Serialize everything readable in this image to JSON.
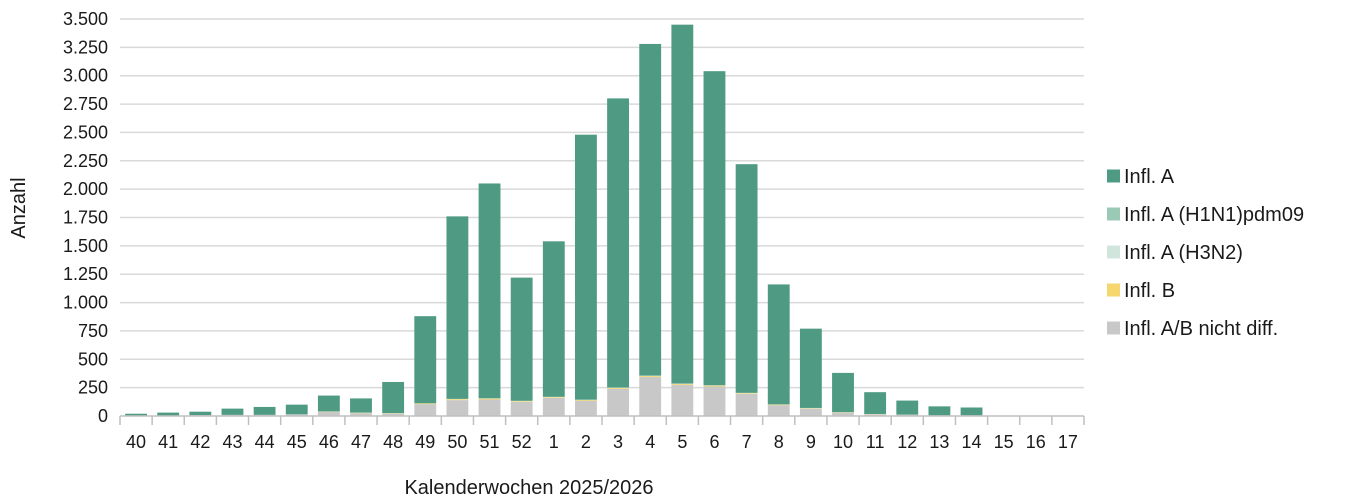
{
  "chart_data": {
    "type": "bar",
    "stacked": true,
    "title": "",
    "xlabel": "Kalenderwochen 2025/2026",
    "ylabel": "Anzahl",
    "ylim": [
      0,
      3500
    ],
    "y_ticks": [
      0,
      250,
      500,
      750,
      1000,
      1250,
      1500,
      1750,
      2000,
      2250,
      2500,
      2750,
      3000,
      3250,
      3500
    ],
    "y_tick_labels": [
      "0",
      "250",
      "500",
      "750",
      "1.000",
      "1.250",
      "1.500",
      "1.750",
      "2.000",
      "2.250",
      "2.500",
      "2.750",
      "3.000",
      "3.250",
      "3.500"
    ],
    "grid": true,
    "legend_position": "right",
    "categories": [
      "40",
      "41",
      "42",
      "43",
      "44",
      "45",
      "46",
      "47",
      "48",
      "49",
      "50",
      "51",
      "52",
      "1",
      "2",
      "3",
      "4",
      "5",
      "6",
      "7",
      "8",
      "9",
      "10",
      "11",
      "12",
      "13",
      "14",
      "15",
      "16",
      "17"
    ],
    "series": [
      {
        "name": "Infl. A/B nicht diff.",
        "color": "#c8c8c8",
        "values": [
          5,
          5,
          8,
          10,
          10,
          15,
          35,
          25,
          20,
          105,
          140,
          145,
          125,
          160,
          135,
          240,
          345,
          275,
          260,
          195,
          95,
          65,
          30,
          15,
          10,
          5,
          5,
          0,
          0,
          0
        ]
      },
      {
        "name": "Infl. B",
        "color": "#f5d76e",
        "values": [
          0,
          0,
          0,
          0,
          0,
          0,
          3,
          3,
          3,
          5,
          8,
          8,
          6,
          6,
          6,
          8,
          8,
          8,
          8,
          6,
          5,
          4,
          3,
          2,
          1,
          1,
          1,
          0,
          0,
          0
        ]
      },
      {
        "name": "Infl. A (H3N2)",
        "color": "#d0e6dd",
        "values": [
          0,
          0,
          0,
          0,
          0,
          0,
          2,
          2,
          2,
          2,
          3,
          3,
          3,
          3,
          3,
          3,
          3,
          3,
          3,
          3,
          2,
          2,
          1,
          1,
          1,
          0,
          0,
          0,
          0,
          0
        ]
      },
      {
        "name": "Infl. A (H1N1)pdm09",
        "color": "#9ac9b5",
        "values": [
          0,
          0,
          0,
          0,
          0,
          0,
          0,
          0,
          0,
          0,
          0,
          0,
          0,
          0,
          0,
          0,
          0,
          0,
          0,
          0,
          0,
          0,
          0,
          0,
          0,
          0,
          0,
          0,
          0,
          0
        ]
      },
      {
        "name": "Infl. A",
        "color": "#4e9a83",
        "values": [
          15,
          25,
          30,
          55,
          70,
          85,
          140,
          125,
          275,
          768,
          1609,
          1894,
          1086,
          1371,
          2336,
          2549,
          2924,
          3164,
          2769,
          2016,
          1058,
          699,
          346,
          192,
          124,
          79,
          69,
          0,
          0,
          0
        ]
      }
    ],
    "legend_order": [
      "Infl. A",
      "Infl. A (H1N1)pdm09",
      "Infl. A (H3N2)",
      "Infl. B",
      "Infl. A/B nicht diff."
    ]
  }
}
